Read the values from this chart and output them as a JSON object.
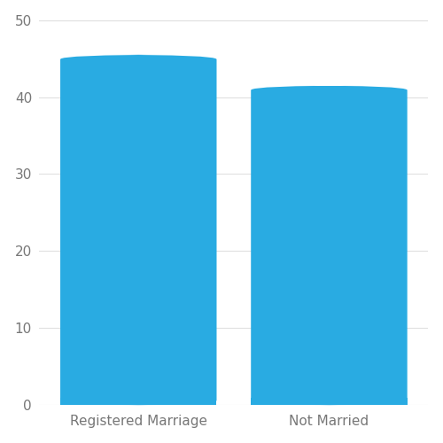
{
  "categories": [
    "Registered Marriage",
    "Not Married"
  ],
  "values": [
    45.5,
    41.5
  ],
  "bar_color": "#29ABE2",
  "ylim": [
    0,
    50
  ],
  "yticks": [
    0,
    10,
    20,
    30,
    40,
    50
  ],
  "background_color": "#ffffff",
  "grid_color": "#e0e0e0",
  "label_color": "#777777",
  "bar_width": 0.82,
  "rounding_size": 0.6,
  "figsize": [
    5.0,
    5.0
  ],
  "dpi": 100,
  "xlim": [
    -0.52,
    1.52
  ]
}
